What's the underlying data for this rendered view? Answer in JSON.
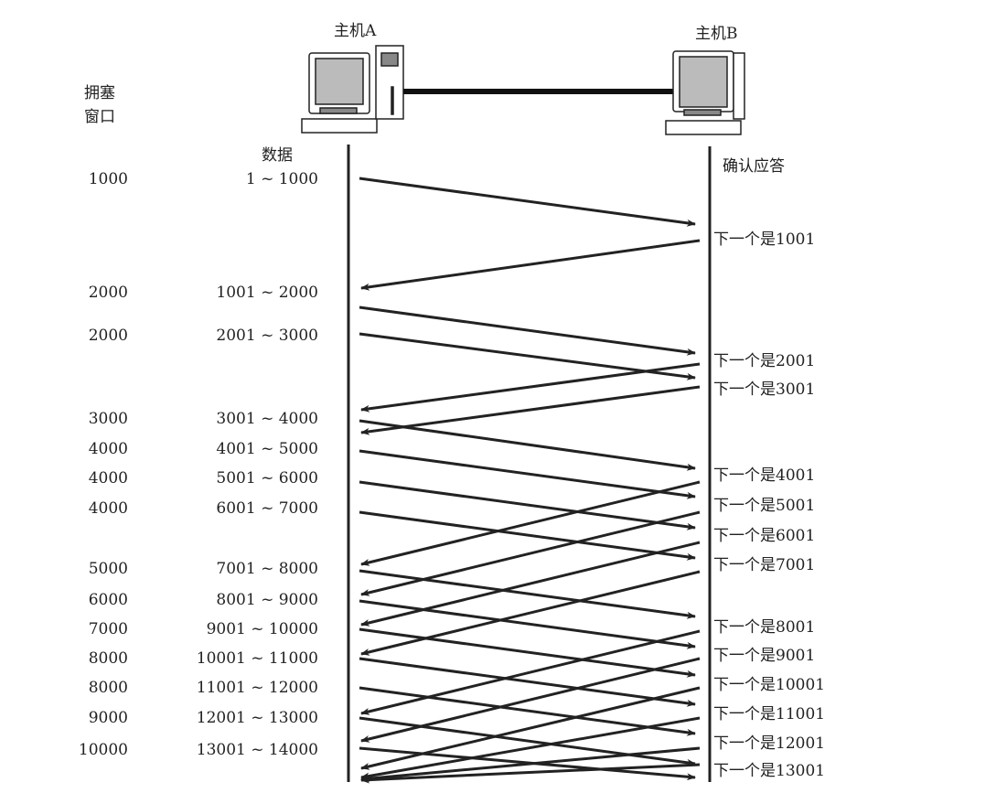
{
  "host_a": "主机A",
  "host_b": "主机B",
  "window_header": [
    "拥塞",
    "窗口"
  ],
  "data_header": "数据",
  "ack_header": "确认应答",
  "rows": [
    {
      "window": "1000",
      "data": "1 ~ 1000"
    },
    {
      "window": "2000",
      "data": "1001 ~ 2000"
    },
    {
      "window": "2000",
      "data": "2001 ~ 3000"
    },
    {
      "window": "3000",
      "data": "3001 ~ 4000"
    },
    {
      "window": "4000",
      "data": "4001 ~ 5000"
    },
    {
      "window": "4000",
      "data": "5001 ~ 6000"
    },
    {
      "window": "4000",
      "data": "6001 ~ 7000"
    },
    {
      "window": "5000",
      "data": "7001 ~ 8000"
    },
    {
      "window": "6000",
      "data": "8001 ~ 9000"
    },
    {
      "window": "7000",
      "data": "9001 ~ 10000"
    },
    {
      "window": "8000",
      "data": "10001 ~ 11000"
    },
    {
      "window": "8000",
      "data": "11001 ~ 12000"
    },
    {
      "window": "9000",
      "data": "12001 ~ 13000"
    },
    {
      "window": "10000",
      "data": "13001 ~ 14000"
    }
  ],
  "acks": [
    "下一个是1001",
    "下一个是2001",
    "下一个是3001",
    "下一个是4001",
    "下一个是5001",
    "下一个是6001",
    "下一个是7001",
    "下一个是8001",
    "下一个是9001",
    "下一个是10001",
    "下一个是11001",
    "下一个是12001",
    "下一个是13001"
  ]
}
